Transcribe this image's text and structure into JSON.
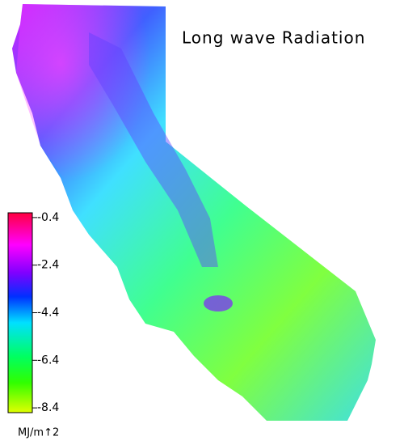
{
  "title": "Long wave Radiation",
  "colorbar": {
    "lim": [
      -8.6,
      -0.2
    ],
    "ticks": [
      -0.4,
      -2.4,
      -4.4,
      -6.4,
      -8.4
    ],
    "unit": "MJ/m↑2"
  }
}
